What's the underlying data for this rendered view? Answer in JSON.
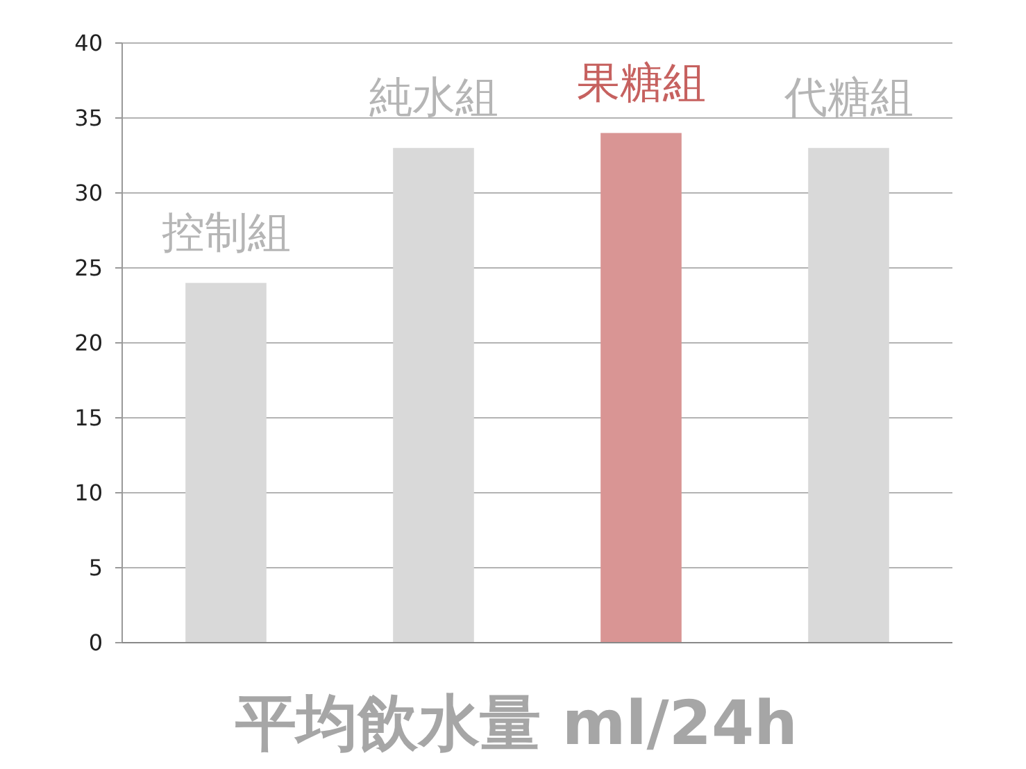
{
  "chart_data": {
    "type": "bar",
    "xlabel": "平均飲水量 ml/24h",
    "categories": [
      "控制組",
      "純水組",
      "果糖組",
      "代糖組"
    ],
    "values": [
      24,
      33,
      34,
      33
    ],
    "colors": [
      "#d9d9d9",
      "#d9d9d9",
      "#d99594",
      "#d9d9d9"
    ],
    "ylim": [
      0,
      40
    ],
    "yticks": [
      0,
      5,
      10,
      15,
      20,
      25,
      30,
      35,
      40
    ],
    "grid": "y"
  }
}
